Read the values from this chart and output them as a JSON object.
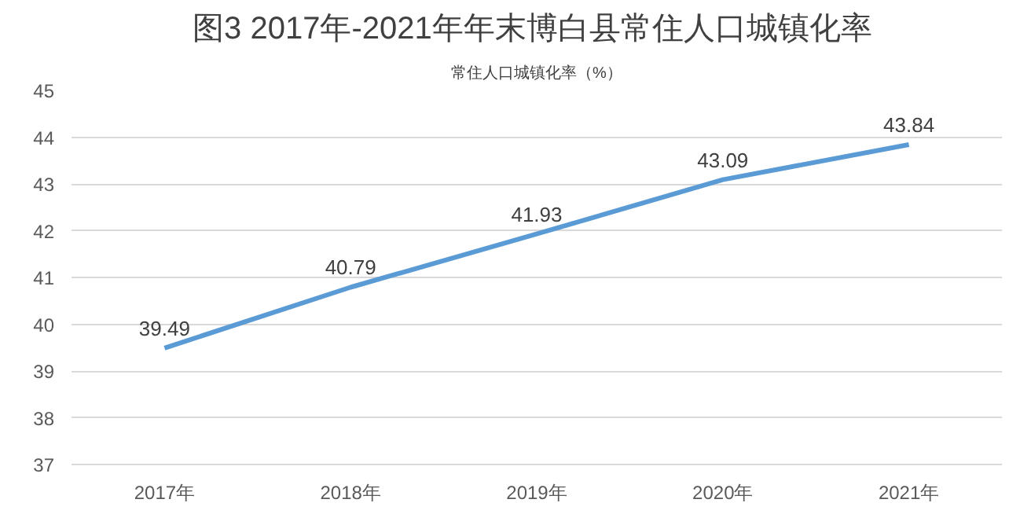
{
  "chart_data": {
    "type": "line",
    "title": "图3  2017年-2021年年末博白县常住人口城镇化率",
    "subtitle": "常住人口城镇化率（%）",
    "categories": [
      "2017年",
      "2018年",
      "2019年",
      "2020年",
      "2021年"
    ],
    "series": [
      {
        "color": "#5b9bd5",
        "values": [
          39.49,
          40.79,
          41.93,
          43.09,
          43.84
        ]
      }
    ],
    "ylim": [
      37,
      45
    ],
    "yticks": [
      37,
      38,
      39,
      40,
      41,
      42,
      43,
      44,
      45
    ],
    "grid": "y",
    "data_labels": true,
    "marker": "none",
    "line_style": "solid"
  }
}
